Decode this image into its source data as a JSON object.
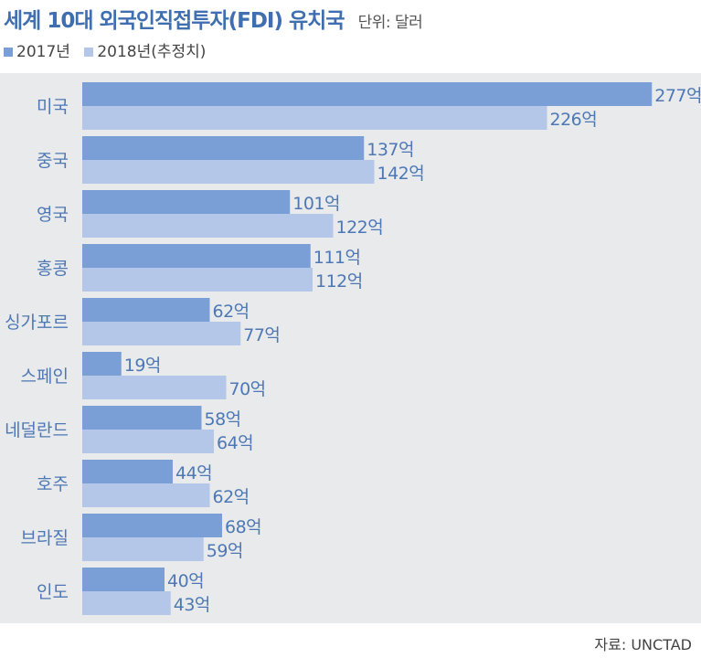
{
  "title": "세계 10대 외국인직접투자(FDI) 유치국",
  "unit": "단위: 달러",
  "source": "자료: UNCTAD",
  "colors": {
    "series2017": "#7a9fd6",
    "series2018": "#b5c7e8",
    "background": "#e9eaec",
    "label": "#4d78b5"
  },
  "chart_data": {
    "type": "bar",
    "orientation": "horizontal",
    "categories": [
      "미국",
      "중국",
      "영국",
      "홍콩",
      "싱가포르",
      "스페인",
      "네덜란드",
      "호주",
      "브라질",
      "인도"
    ],
    "series": [
      {
        "name": "2017년",
        "values": [
          277,
          137,
          101,
          111,
          62,
          19,
          58,
          44,
          68,
          40
        ],
        "labels": [
          "277억",
          "137억",
          "101억",
          "111억",
          "62억",
          "19억",
          "58억",
          "44억",
          "68억",
          "40억"
        ]
      },
      {
        "name": "2018년(추정치)",
        "values": [
          226,
          142,
          122,
          112,
          77,
          70,
          64,
          62,
          59,
          43
        ],
        "labels": [
          "226억",
          "142억",
          "122억",
          "112억",
          "77억",
          "70억",
          "64억",
          "62억",
          "59억",
          "43억"
        ]
      }
    ],
    "legend": "top-left",
    "grid": false
  }
}
